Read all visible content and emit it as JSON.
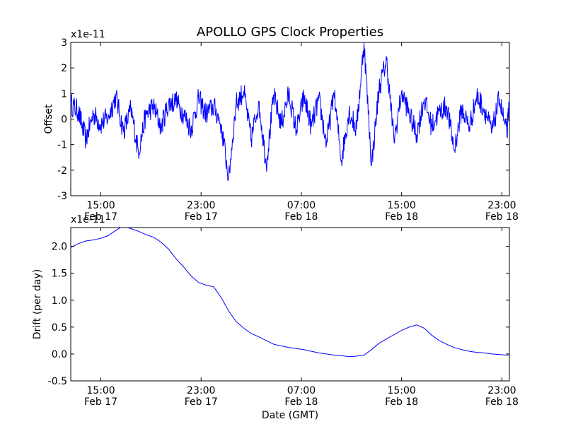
{
  "figure": {
    "title": "APOLLO GPS Clock Properties",
    "xlabel": "Date (GMT)",
    "line_color": "#0000ff",
    "x_ticks": [
      {
        "line1": "15:00",
        "line2": "Feb 17",
        "hour": 15
      },
      {
        "line1": "23:00",
        "line2": "Feb 17",
        "hour": 23
      },
      {
        "line1": "07:00",
        "line2": "Feb 18",
        "hour": 31
      },
      {
        "line1": "15:00",
        "line2": "Feb 18",
        "hour": 39
      },
      {
        "line1": "23:00",
        "line2": "Feb 18",
        "hour": 47
      }
    ]
  },
  "chart_data": [
    {
      "type": "line",
      "name": "offset",
      "ylabel": "Offset",
      "multiplier": "x1e-11",
      "xlim": [
        12.6,
        47.6
      ],
      "ylim": [
        -3,
        3
      ],
      "yticks": [
        "-3",
        "-2",
        "-1",
        "0",
        "1",
        "2",
        "3"
      ],
      "ytick_values": [
        -3,
        -2,
        -1,
        0,
        1,
        2,
        3
      ],
      "x": [
        12.6,
        13.2,
        13.8,
        14.4,
        15.0,
        15.6,
        16.2,
        16.8,
        17.4,
        18.0,
        18.6,
        19.2,
        19.8,
        20.4,
        21.0,
        21.6,
        22.2,
        22.8,
        23.4,
        24.0,
        24.6,
        25.2,
        25.8,
        26.4,
        27.0,
        27.6,
        28.2,
        28.8,
        29.4,
        30.0,
        30.6,
        31.2,
        31.8,
        32.4,
        33.0,
        33.6,
        34.2,
        34.8,
        35.4,
        36.0,
        36.6,
        37.2,
        37.8,
        38.4,
        39.0,
        39.6,
        40.2,
        40.8,
        41.4,
        42.0,
        42.6,
        43.2,
        43.8,
        44.4,
        45.0,
        45.6,
        46.2,
        46.8,
        47.4,
        47.6
      ],
      "y": [
        0.6,
        0.3,
        -0.8,
        0.2,
        -0.2,
        0.1,
        0.9,
        -0.5,
        0.4,
        -1.3,
        0.2,
        0.5,
        -0.3,
        0.6,
        0.7,
        0.2,
        -0.4,
        0.8,
        0.2,
        0.5,
        -0.2,
        -2.3,
        0.6,
        1.1,
        -0.8,
        0.7,
        -1.8,
        0.9,
        -0.2,
        1.0,
        -0.5,
        0.9,
        -0.3,
        0.8,
        -1.0,
        1.0,
        -1.6,
        0.3,
        -0.4,
        3.0,
        -1.8,
        1.2,
        2.3,
        -0.9,
        1.1,
        0.2,
        -0.6,
        0.8,
        -0.3,
        0.3,
        0.5,
        -1.2,
        0.4,
        -0.3,
        0.9,
        0.4,
        -0.5,
        0.8,
        -0.6,
        0.7
      ]
    },
    {
      "type": "line",
      "name": "drift",
      "ylabel": "Drift (per day)",
      "multiplier": "x1e-11",
      "xlim": [
        12.6,
        47.6
      ],
      "ylim": [
        -0.5,
        2.35
      ],
      "yticks": [
        "-0.5",
        "0.0",
        "0.5",
        "1.0",
        "1.5",
        "2.0"
      ],
      "ytick_values": [
        -0.5,
        0.0,
        0.5,
        1.0,
        1.5,
        2.0
      ],
      "x": [
        12.6,
        13.2,
        13.8,
        14.4,
        15.0,
        15.6,
        16.2,
        16.8,
        17.4,
        18.0,
        18.6,
        19.2,
        19.8,
        20.4,
        21.0,
        21.6,
        22.2,
        22.8,
        23.4,
        24.0,
        24.6,
        25.2,
        25.8,
        26.4,
        27.0,
        27.6,
        28.2,
        28.8,
        29.4,
        30.0,
        30.6,
        31.2,
        31.8,
        32.4,
        33.0,
        33.6,
        34.2,
        34.8,
        35.4,
        36.0,
        36.6,
        37.2,
        37.8,
        38.4,
        39.0,
        39.6,
        40.2,
        40.8,
        41.4,
        42.0,
        42.6,
        43.2,
        43.8,
        44.4,
        45.0,
        45.6,
        46.2,
        46.8,
        47.4,
        47.6
      ],
      "y": [
        1.98,
        2.05,
        2.1,
        2.12,
        2.15,
        2.2,
        2.3,
        2.38,
        2.33,
        2.28,
        2.22,
        2.17,
        2.08,
        1.95,
        1.77,
        1.62,
        1.45,
        1.33,
        1.28,
        1.25,
        1.05,
        0.8,
        0.6,
        0.48,
        0.38,
        0.32,
        0.25,
        0.18,
        0.15,
        0.12,
        0.1,
        0.08,
        0.05,
        0.02,
        0.0,
        -0.02,
        -0.03,
        -0.05,
        -0.04,
        -0.02,
        0.08,
        0.2,
        0.28,
        0.36,
        0.44,
        0.5,
        0.54,
        0.48,
        0.35,
        0.25,
        0.18,
        0.12,
        0.08,
        0.05,
        0.03,
        0.02,
        0.0,
        -0.01,
        -0.02,
        -0.02
      ]
    }
  ]
}
